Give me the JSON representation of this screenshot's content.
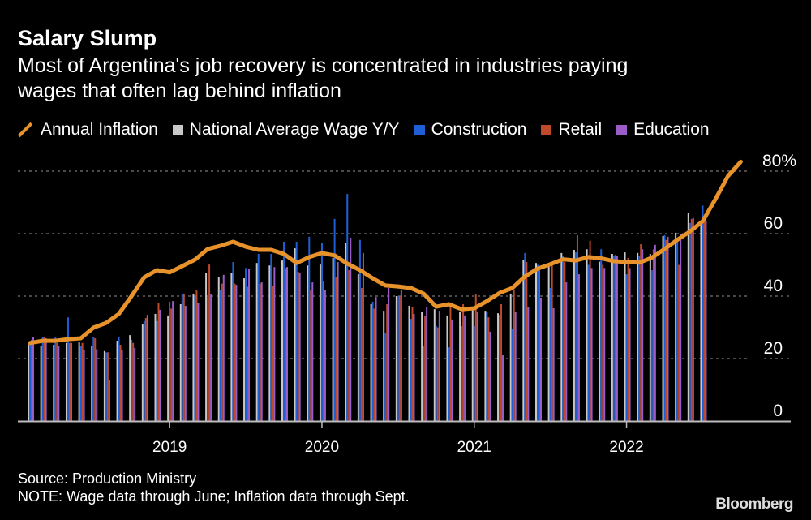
{
  "header": {
    "title": "Salary Slump",
    "subtitle_line1": "Most of Argentina's job recovery is concentrated in industries paying",
    "subtitle_line2": "wages that often lag behind inflation"
  },
  "footer": {
    "source": "Source: Production Ministry",
    "note": "NOTE: Wage data through June; Inflation data through Sept.",
    "logo": "Bloomberg"
  },
  "chart_data": {
    "type": "bar",
    "title": "Salary Slump",
    "ylabel": "",
    "xlabel": "",
    "ylim": [
      0,
      80
    ],
    "y_ticks": [
      "0",
      "20",
      "40",
      "60",
      "80%"
    ],
    "x_ticks": [
      "2019",
      "2020",
      "2021",
      "2022"
    ],
    "grid": true,
    "legend_placement": "top",
    "months": [
      "2018-01",
      "2018-02",
      "2018-03",
      "2018-04",
      "2018-05",
      "2018-06",
      "2018-07",
      "2018-08",
      "2018-09",
      "2018-10",
      "2018-11",
      "2018-12",
      "2019-01",
      "2019-02",
      "2019-03",
      "2019-04",
      "2019-05",
      "2019-06",
      "2019-07",
      "2019-08",
      "2019-09",
      "2019-10",
      "2019-11",
      "2019-12",
      "2020-01",
      "2020-02",
      "2020-03",
      "2020-04",
      "2020-05",
      "2020-06",
      "2020-07",
      "2020-08",
      "2020-09",
      "2020-10",
      "2020-11",
      "2020-12",
      "2021-01",
      "2021-02",
      "2021-03",
      "2021-04",
      "2021-05",
      "2021-06",
      "2021-07",
      "2021-08",
      "2021-09",
      "2021-10",
      "2021-11",
      "2021-12",
      "2022-01",
      "2022-02",
      "2022-03",
      "2022-04",
      "2022-05",
      "2022-06",
      "2022-07",
      "2022-08",
      "2022-09"
    ],
    "line_series": {
      "name": "Annual Inflation",
      "color": "#e8922b",
      "values": [
        25.0,
        25.7,
        25.7,
        26.2,
        26.5,
        29.9,
        31.4,
        34.3,
        40.0,
        46.0,
        48.3,
        47.6,
        49.6,
        51.7,
        55.1,
        56.1,
        57.4,
        55.8,
        54.8,
        54.8,
        53.5,
        50.6,
        52.5,
        53.8,
        53.0,
        50.4,
        48.3,
        45.7,
        43.4,
        43.1,
        42.6,
        40.8,
        36.6,
        37.4,
        35.8,
        36.1,
        38.4,
        41.0,
        42.6,
        46.3,
        48.8,
        50.2,
        51.8,
        51.4,
        52.5,
        52.1,
        51.2,
        50.9,
        50.7,
        52.3,
        55.1,
        58.0,
        60.7,
        64.0,
        71.0,
        78.5,
        83.0
      ]
    },
    "series": [
      {
        "name": "National Average Wage Y/Y",
        "color": "#c8c8c8",
        "values": [
          24.5,
          24,
          24.4,
          25,
          25.3,
          24,
          22.4,
          25.7,
          27.5,
          31,
          34.3,
          33.8,
          37.4,
          40.8,
          47.3,
          46,
          47.3,
          45.7,
          50.6,
          49.8,
          51.4,
          55.3,
          49.8,
          50.1,
          52.2,
          57.1,
          47,
          37.4,
          35.3,
          40,
          36.9,
          35,
          35.8,
          33.8,
          35,
          35.8,
          35.3,
          34.5,
          40.8,
          51.7,
          50.6,
          49.6,
          53.8,
          54.8,
          55,
          51,
          53.5,
          54,
          53.8,
          53.5,
          59.2,
          60.3,
          66.5,
          62.9
        ]
      },
      {
        "name": "Construction",
        "color": "#1f5fd6",
        "values": [
          25.5,
          27,
          27,
          33.2,
          24,
          27,
          22,
          26.8,
          26,
          32,
          32,
          38.2,
          40.8,
          40,
          40,
          42,
          50.9,
          49,
          53.5,
          53.5,
          57.4,
          57.4,
          59,
          57.1,
          64.7,
          72.7,
          58,
          38.2,
          28.3,
          40,
          32.7,
          23.9,
          30.4,
          23.6,
          30.4,
          30.4,
          35,
          34,
          29.6,
          53.8,
          50,
          42.6,
          53,
          54,
          50,
          55,
          53,
          47,
          53,
          48.3,
          59.5,
          57.4,
          63.4,
          69
        ]
      },
      {
        "name": "Retail",
        "color": "#c0492b",
        "values": [
          26,
          27,
          25,
          25,
          25,
          26.5,
          22,
          24.4,
          25,
          33,
          37.7,
          36,
          40.8,
          41.8,
          50.1,
          44,
          44,
          43,
          44,
          43.4,
          49,
          47.8,
          41.8,
          44.7,
          46,
          48.3,
          42.6,
          36,
          37.4,
          40,
          36.6,
          33.5,
          30,
          36.4,
          37.4,
          40.5,
          33.2,
          37.4,
          41.8,
          50.9,
          48.3,
          49.9,
          50.9,
          59.5,
          57.7,
          50,
          53.2,
          52.2,
          56.6,
          55,
          58,
          50,
          64.7,
          64
        ]
      },
      {
        "name": "Education",
        "color": "#9a5cc6",
        "values": [
          26.8,
          26.5,
          24,
          25,
          22.9,
          23,
          13,
          22.6,
          23.4,
          34,
          35.6,
          38.4,
          36.9,
          37.9,
          40.5,
          46.8,
          43.6,
          48.6,
          44.4,
          49.3,
          49.3,
          47.5,
          44.4,
          42,
          50.9,
          58.7,
          53.8,
          39.7,
          42.6,
          42,
          34.3,
          36.6,
          35.3,
          32.5,
          33.8,
          35,
          28.6,
          21.3,
          34.8,
          36.6,
          39.5,
          36.1,
          44.4,
          47,
          49,
          49,
          53,
          49,
          55,
          56.4,
          59,
          60,
          65,
          63.9
        ]
      }
    ]
  }
}
